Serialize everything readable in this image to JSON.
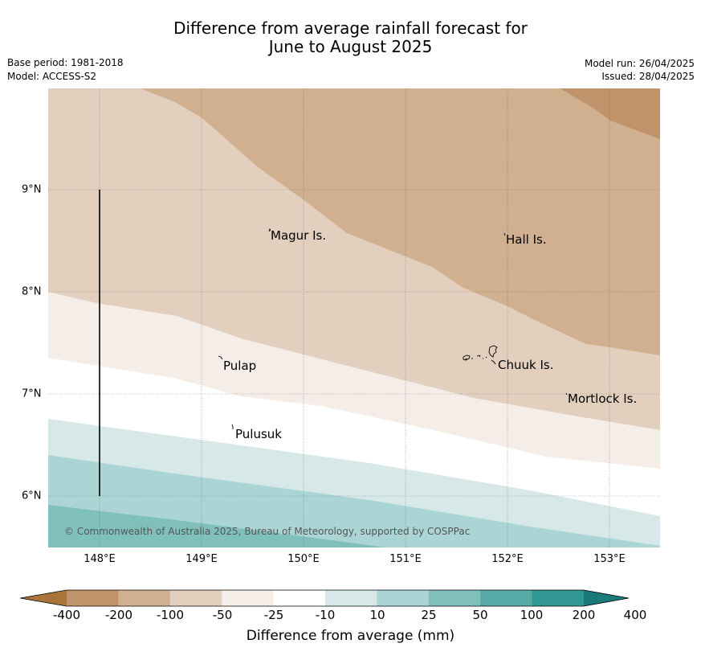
{
  "title": {
    "line1": "Difference from average rainfall forecast for",
    "line2": "June to August 2025"
  },
  "meta": {
    "base_period": "Base period: 1981-2018",
    "model": "Model: ACCESS-S2",
    "model_run": "Model run: 26/04/2025",
    "issued": "Issued: 28/04/2025"
  },
  "map": {
    "lat_ticks": [
      "9°N",
      "8°N",
      "7°N",
      "6°N"
    ],
    "lon_ticks": [
      "148°E",
      "149°E",
      "150°E",
      "151°E",
      "152°E",
      "153°E"
    ],
    "places": {
      "magur": "Magur Is.",
      "hall": "Hall Is.",
      "pulap": "Pulap",
      "chuuk": "Chuuk Is.",
      "mortlock": "Mortlock Is.",
      "pulusuk": "Pulusuk"
    },
    "copyright": "© Commonwealth of Australia 2025, Bureau of Meteorology, supported by COSPPac"
  },
  "colors": {
    "scale": [
      "#a97439",
      "#c0936a",
      "#d1b08f",
      "#e2cfbe",
      "#f5ede8",
      "#ffffff",
      "#d6e9e8",
      "#aad5d4",
      "#7fc0bd",
      "#57aaa8",
      "#319795",
      "#1b7a78"
    ]
  },
  "colorbar": {
    "labels": [
      "-400",
      "-200",
      "-100",
      "-50",
      "-25",
      "-10",
      "10",
      "25",
      "50",
      "100",
      "200",
      "400"
    ],
    "title": "Difference from average (mm)"
  }
}
